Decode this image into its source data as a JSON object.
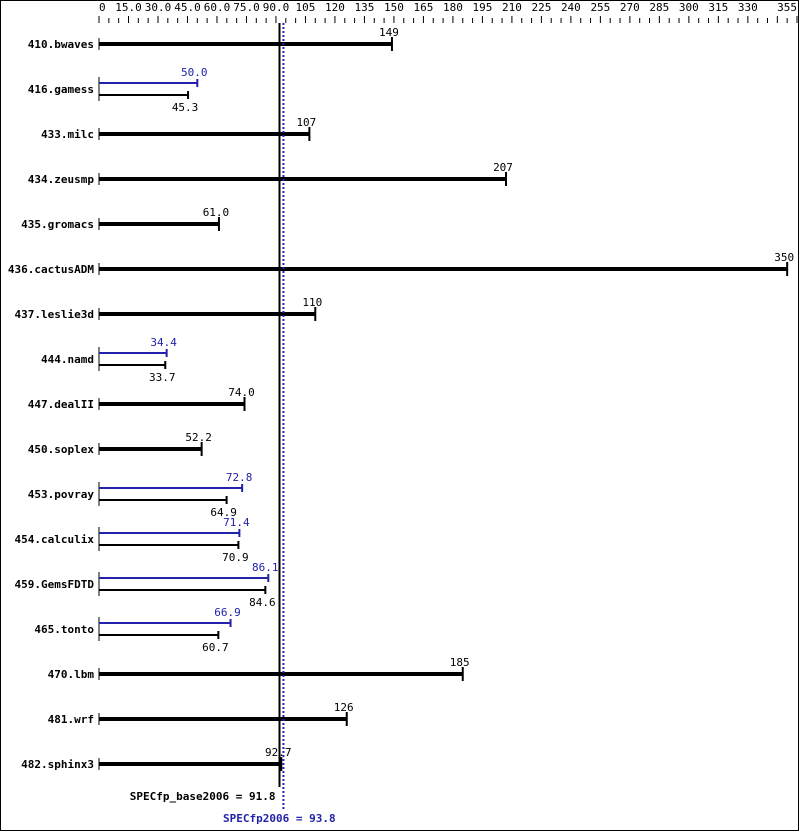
{
  "chart_data": {
    "type": "bar",
    "orientation": "horizontal",
    "xlim": [
      0,
      355
    ],
    "tick_step": 5,
    "tick_labels": [
      "0",
      "15.0",
      "30.0",
      "45.0",
      "60.0",
      "75.0",
      "90.0",
      "105",
      "120",
      "135",
      "150",
      "165",
      "180",
      "195",
      "210",
      "225",
      "240",
      "255",
      "270",
      "285",
      "300",
      "315",
      "330",
      "355"
    ],
    "tick_label_values": [
      0,
      15,
      30,
      45,
      60,
      75,
      90,
      105,
      120,
      135,
      150,
      165,
      180,
      195,
      210,
      225,
      240,
      255,
      270,
      285,
      300,
      315,
      330,
      355
    ],
    "categories": [
      "410.bwaves",
      "416.gamess",
      "433.milc",
      "434.zeusmp",
      "435.gromacs",
      "436.cactusADM",
      "437.leslie3d",
      "444.namd",
      "447.dealII",
      "450.soplex",
      "453.povray",
      "454.calculix",
      "459.GemsFDTD",
      "465.tonto",
      "470.lbm",
      "481.wrf",
      "482.sphinx3"
    ],
    "series": [
      {
        "name": "SPECfp_base2006",
        "color": "#000000",
        "values": [
          149,
          45.3,
          107,
          207,
          61.0,
          350,
          110,
          33.7,
          74.0,
          52.2,
          64.9,
          70.9,
          84.6,
          60.7,
          185,
          126,
          92.7
        ],
        "labels": [
          "149",
          "45.3",
          "107",
          "207",
          "61.0",
          "350",
          "110",
          "33.7",
          "74.0",
          "52.2",
          "64.9",
          "70.9",
          "84.6",
          "60.7",
          "185",
          "126",
          "92.7"
        ]
      },
      {
        "name": "SPECfp2006",
        "color": "#2222aa",
        "values": [
          null,
          50.0,
          null,
          null,
          null,
          null,
          null,
          34.4,
          null,
          null,
          72.8,
          71.4,
          86.1,
          66.9,
          null,
          null,
          null
        ],
        "labels": [
          null,
          "50.0",
          null,
          null,
          null,
          null,
          null,
          "34.4",
          null,
          null,
          "72.8",
          "71.4",
          "86.1",
          "66.9",
          null,
          null,
          null
        ]
      }
    ],
    "reference_lines": [
      {
        "label": "SPECfp_base2006 = 91.8",
        "value": 91.8,
        "color": "#000000",
        "style": "solid"
      },
      {
        "label": "SPECfp2006 = 93.8",
        "value": 93.8,
        "color": "#2222aa",
        "style": "dotted"
      }
    ]
  }
}
